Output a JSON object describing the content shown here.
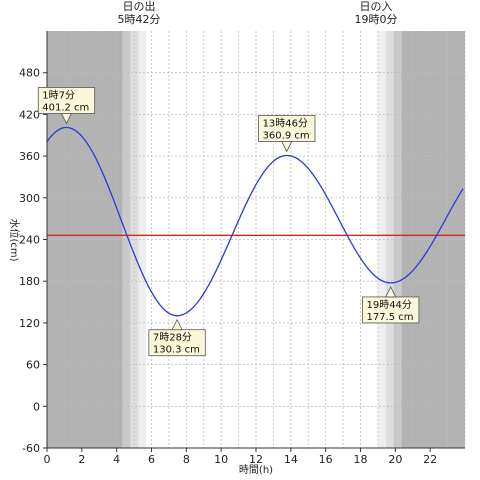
{
  "chart_data": {
    "type": "line",
    "title": "",
    "xlabel": "時間(h)",
    "ylabel": "水位(cm)",
    "xlim": [
      0,
      24
    ],
    "ylim": [
      -60,
      540
    ],
    "x_ticks": [
      0,
      2,
      4,
      6,
      8,
      10,
      12,
      14,
      16,
      18,
      20,
      22
    ],
    "y_ticks": [
      -60,
      0,
      60,
      120,
      180,
      240,
      300,
      360,
      420,
      480
    ],
    "grid": true,
    "reference_line": {
      "value": 246,
      "color": "#e02020"
    },
    "series": [
      {
        "color": "#2b3bd6",
        "x": [
          0,
          1.117,
          7.467,
          13.767,
          19.733,
          23.9
        ],
        "y": [
          380,
          401.2,
          130.3,
          360.9,
          177.5,
          333
        ]
      }
    ],
    "annotations": [
      {
        "line1": "1時7分",
        "line2": "401.2 cm",
        "x": 1.117,
        "y": 401.2,
        "position": "above"
      },
      {
        "line1": "7時28分",
        "line2": "130.3 cm",
        "x": 7.467,
        "y": 130.3,
        "position": "below"
      },
      {
        "line1": "13時46分",
        "line2": "360.9 cm",
        "x": 13.767,
        "y": 360.9,
        "position": "above"
      },
      {
        "line1": "19時44分",
        "line2": "177.5 cm",
        "x": 19.733,
        "y": 177.5,
        "position": "below"
      }
    ],
    "sunrise": {
      "label": "日の出",
      "time_label": "5時42分",
      "hour": 5.7
    },
    "sunset": {
      "label": "日の入",
      "time_label": "19時0分",
      "hour": 19.0
    },
    "colors": {
      "night": "#b3b3b3",
      "twilight": [
        "#cacaca",
        "#dedede",
        "#eeeeee"
      ],
      "day": "#ffffff",
      "grid": "#bdbdbd",
      "callout_bg": "#fbf8d9"
    }
  }
}
